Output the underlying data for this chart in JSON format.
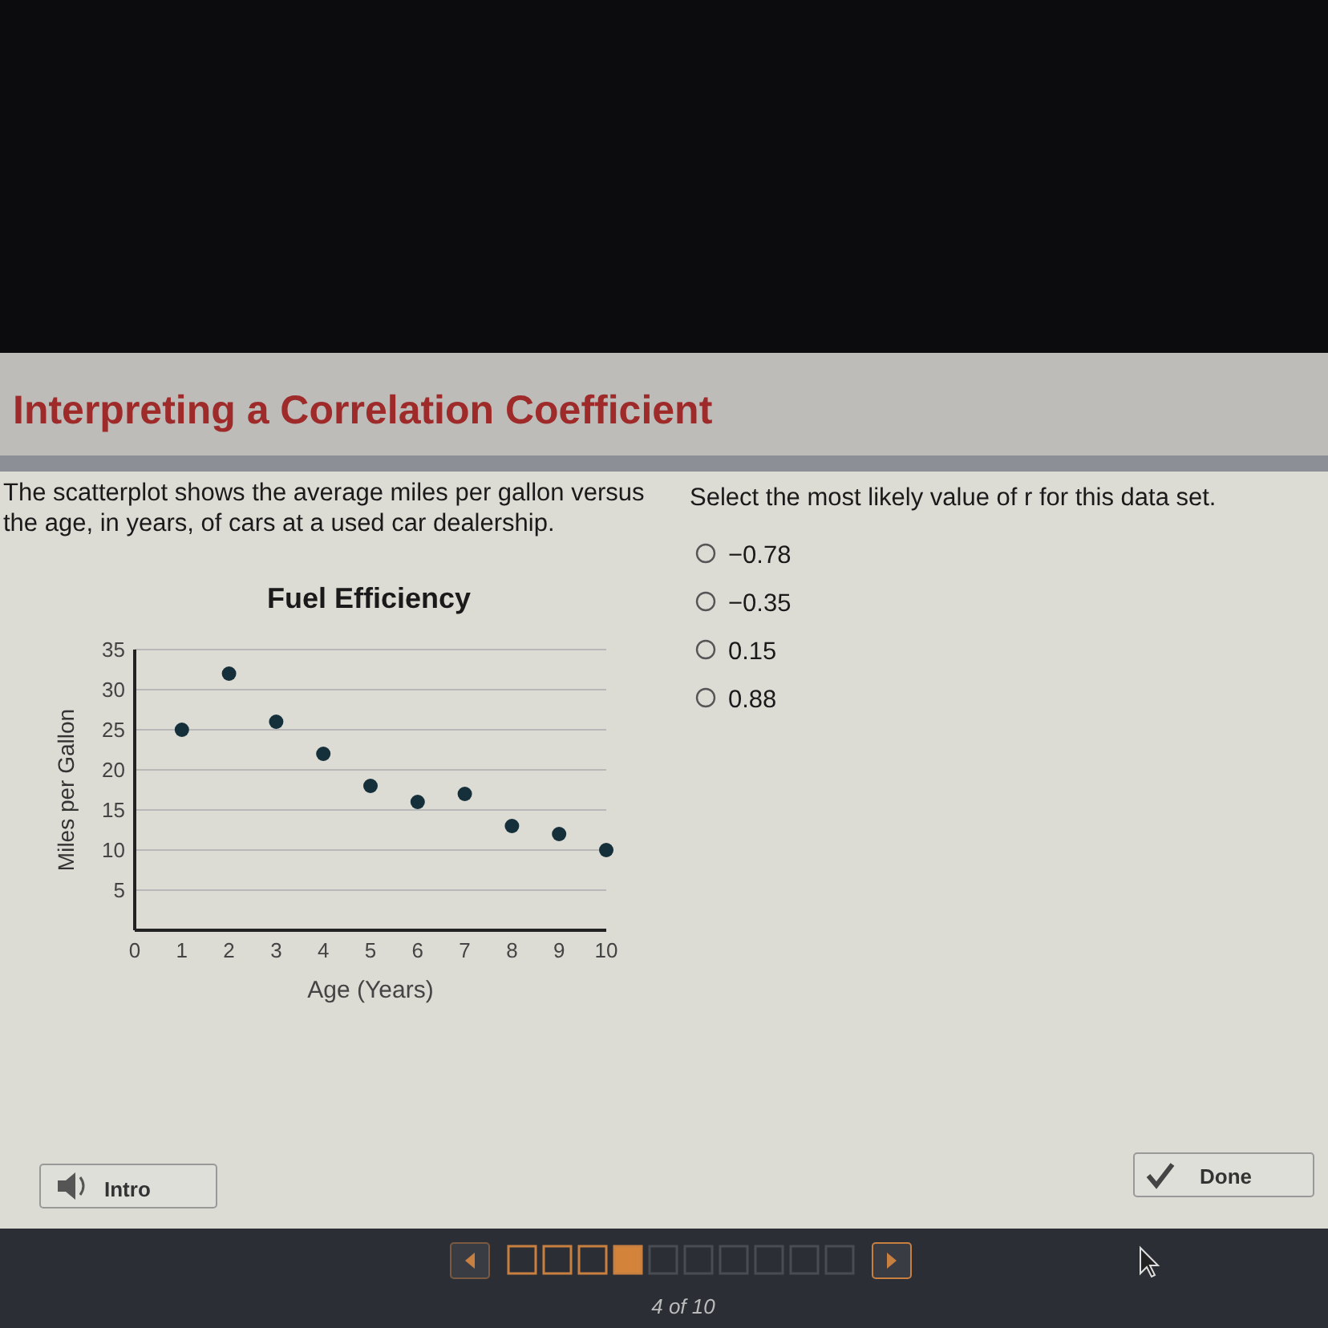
{
  "chart_data": {
    "type": "scatter",
    "title": "Fuel Efficiency",
    "xlabel": "Age (Years)",
    "ylabel": "Miles per Gallon",
    "x": [
      1,
      2,
      3,
      4,
      5,
      6,
      7,
      8,
      9,
      10
    ],
    "values": [
      25,
      32,
      26,
      22,
      18,
      16,
      17,
      13,
      12,
      10
    ],
    "color": "#15303a",
    "marker": "circle",
    "grid": "y",
    "legend": false,
    "xlim": [
      0,
      10
    ],
    "xticks": [
      0,
      1,
      2,
      3,
      4,
      5,
      6,
      7,
      8,
      9,
      10
    ],
    "ylim": [
      0,
      35
    ],
    "yticks": [
      {
        "value": 0,
        "label": null
      },
      5,
      10,
      15,
      20,
      25,
      30,
      35
    ],
    "annotations": [
      "Interpreting a Correlation Coefficient",
      "The scatterplot shows the average miles per gallon versus the age, in years, of cars at a used car dealership.",
      "Select the most likely value of r for this data set.",
      "−0.78",
      "−0.35",
      "0.15",
      "0.88",
      "Intro",
      "Done",
      "4 of 10"
    ]
  }
}
